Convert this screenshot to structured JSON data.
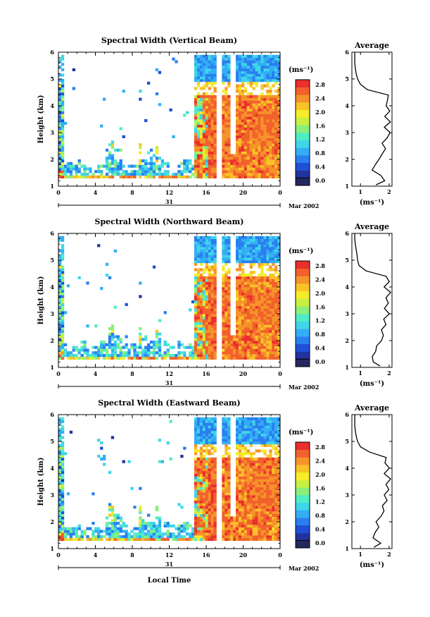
{
  "colors": {
    "scale": [
      "#24285e",
      "#2233a0",
      "#1e4fd6",
      "#2a7ff0",
      "#33aef5",
      "#3fd6ea",
      "#52ecc4",
      "#8af07a",
      "#c8f042",
      "#f5ec2a",
      "#f9c328",
      "#f6932a",
      "#f2612b",
      "#ea2f2c"
    ]
  },
  "time_ticks": [
    "0",
    "4",
    "8",
    "12",
    "16",
    "20",
    "0"
  ],
  "date_label": "31",
  "month_label": "Mar 2002",
  "height_ticks": [
    "1",
    "2",
    "3",
    "4",
    "5",
    "6"
  ],
  "colorbar_unit": "(ms⁻¹)",
  "colorbar_ticks": [
    "0.0",
    "0.4",
    "0.8",
    "1.2",
    "1.6",
    "2.0",
    "2.4",
    "2.8"
  ],
  "avg_title": "Average",
  "avg_unit": "(ms⁻¹)",
  "avg_ticks": [
    "1",
    "2"
  ],
  "ylabel": "Height (km)",
  "xlabel": "Local Time",
  "panels": [
    {
      "title": "Spectral Width (Vertical Beam)"
    },
    {
      "title": "Spectral Width (Northward Beam)"
    },
    {
      "title": "Spectral Width (Eastward Beam)"
    }
  ],
  "chart_data": [
    {
      "type": "heatmap",
      "title": "Spectral Width (Vertical Beam)",
      "xlabel": "",
      "ylabel": "Height (km)",
      "xlim": [
        0,
        24
      ],
      "ylim": [
        1,
        6
      ],
      "zlim": [
        0,
        2.8
      ],
      "x_ticks": [
        0,
        4,
        8,
        12,
        16,
        20,
        24
      ],
      "y_ticks": [
        1,
        2,
        3,
        4,
        5,
        6
      ],
      "profile": {
        "title": "Average",
        "xlabel": "(ms⁻¹)",
        "xlim": [
          0.7,
          2.1
        ],
        "height": [
          1.05,
          1.2,
          1.4,
          1.6,
          1.8,
          2.0,
          2.2,
          2.4,
          2.6,
          2.8,
          3.0,
          3.2,
          3.4,
          3.6,
          3.8,
          4.0,
          4.2,
          4.4,
          4.6,
          4.8,
          5.0,
          5.2,
          5.4,
          5.6,
          5.8,
          6.0
        ],
        "value": [
          1.6,
          1.9,
          1.7,
          1.45,
          1.5,
          1.6,
          1.75,
          1.85,
          1.8,
          1.9,
          2.0,
          1.85,
          2.0,
          1.9,
          2.05,
          1.9,
          2.0,
          1.95,
          1.3,
          1.0,
          0.9,
          0.85,
          0.82,
          0.8,
          0.8,
          0.8
        ]
      }
    },
    {
      "type": "heatmap",
      "title": "Spectral Width (Northward Beam)",
      "xlabel": "",
      "ylabel": "Height (km)",
      "xlim": [
        0,
        24
      ],
      "ylim": [
        1,
        6
      ],
      "zlim": [
        0,
        2.8
      ],
      "x_ticks": [
        0,
        4,
        8,
        12,
        16,
        20,
        24
      ],
      "y_ticks": [
        1,
        2,
        3,
        4,
        5,
        6
      ],
      "profile": {
        "title": "Average",
        "xlabel": "(ms⁻¹)",
        "xlim": [
          0.7,
          2.1
        ],
        "height": [
          1.05,
          1.2,
          1.4,
          1.6,
          1.8,
          2.0,
          2.2,
          2.4,
          2.6,
          2.8,
          3.0,
          3.2,
          3.4,
          3.6,
          3.8,
          4.0,
          4.2,
          4.4,
          4.6,
          4.8,
          5.0,
          5.2,
          5.4,
          5.6,
          5.8,
          6.0
        ],
        "value": [
          1.7,
          1.5,
          1.4,
          1.5,
          1.6,
          1.7,
          1.8,
          1.75,
          1.9,
          1.85,
          2.0,
          1.8,
          1.95,
          1.9,
          2.0,
          1.85,
          2.0,
          1.9,
          1.2,
          0.95,
          0.9,
          0.88,
          0.85,
          0.82,
          0.8,
          0.8
        ]
      }
    },
    {
      "type": "heatmap",
      "title": "Spectral Width (Eastward Beam)",
      "xlabel": "Local Time",
      "ylabel": "Height (km)",
      "xlim": [
        0,
        24
      ],
      "ylim": [
        1,
        6
      ],
      "zlim": [
        0,
        2.8
      ],
      "x_ticks": [
        0,
        4,
        8,
        12,
        16,
        20,
        24
      ],
      "y_ticks": [
        1,
        2,
        3,
        4,
        5,
        6
      ],
      "profile": {
        "title": "Average",
        "xlabel": "(ms⁻¹)",
        "xlim": [
          0.7,
          2.1
        ],
        "height": [
          1.05,
          1.2,
          1.4,
          1.6,
          1.8,
          2.0,
          2.2,
          2.4,
          2.6,
          2.8,
          3.0,
          3.2,
          3.4,
          3.6,
          3.8,
          4.0,
          4.2,
          4.4,
          4.6,
          4.8,
          5.0,
          5.2,
          5.4,
          5.6,
          5.8,
          6.0
        ],
        "value": [
          1.5,
          1.7,
          1.45,
          1.5,
          1.6,
          1.55,
          1.7,
          1.8,
          1.75,
          1.9,
          1.85,
          2.0,
          1.9,
          2.0,
          1.85,
          2.05,
          1.9,
          1.95,
          1.3,
          1.0,
          0.9,
          0.85,
          0.82,
          0.8,
          0.8,
          0.8
        ]
      }
    }
  ]
}
